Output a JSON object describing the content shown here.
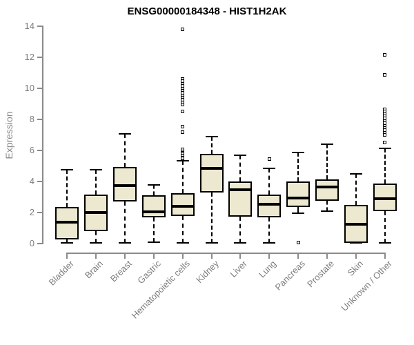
{
  "chart_data": {
    "type": "boxplot",
    "title": "ENSG00000184348 - HIST1H2AK",
    "xlabel": "",
    "ylabel": "Expression",
    "ylim": [
      0,
      14
    ],
    "y_ticks": [
      0,
      2,
      4,
      6,
      8,
      10,
      12,
      14
    ],
    "grid": false,
    "legend": "none",
    "categories": [
      "Bladder",
      "Brain",
      "Breast",
      "Gastric",
      "Hematopoietic cells",
      "Kidney",
      "Liver",
      "Lung",
      "Pancreas",
      "Prostate",
      "Skin",
      "Unknown / Other"
    ],
    "series": [
      {
        "name": "Bladder",
        "low": 0.05,
        "q1": 0.25,
        "median": 1.4,
        "q3": 2.35,
        "high": 4.75,
        "outliers": []
      },
      {
        "name": "Brain",
        "low": 0.05,
        "q1": 0.8,
        "median": 2.0,
        "q3": 3.15,
        "high": 4.75,
        "outliers": []
      },
      {
        "name": "Breast",
        "low": 0.05,
        "q1": 2.7,
        "median": 3.75,
        "q3": 4.95,
        "high": 7.05,
        "outliers": []
      },
      {
        "name": "Gastric",
        "low": 0.1,
        "q1": 1.7,
        "median": 2.05,
        "q3": 3.1,
        "high": 3.8,
        "outliers": []
      },
      {
        "name": "Hematopoietic cells",
        "low": 0.05,
        "q1": 1.8,
        "median": 2.4,
        "q3": 3.25,
        "high": 5.35,
        "outliers": [
          13.8,
          10.6,
          10.45,
          10.3,
          10.15,
          10.0,
          9.85,
          9.7,
          9.55,
          9.4,
          9.25,
          9.1,
          8.95,
          8.5,
          7.55,
          7.2,
          6.05,
          5.95,
          5.85,
          5.75,
          5.65,
          5.55,
          5.5
        ]
      },
      {
        "name": "Kidney",
        "low": 0.05,
        "q1": 3.3,
        "median": 4.85,
        "q3": 5.8,
        "high": 6.9,
        "outliers": []
      },
      {
        "name": "Liver",
        "low": 0.05,
        "q1": 1.75,
        "median": 3.45,
        "q3": 4.0,
        "high": 5.7,
        "outliers": []
      },
      {
        "name": "Lung",
        "low": 0.05,
        "q1": 1.7,
        "median": 2.55,
        "q3": 3.15,
        "high": 4.85,
        "outliers": [
          5.45
        ]
      },
      {
        "name": "Pancreas",
        "low": 1.95,
        "q1": 2.35,
        "median": 2.95,
        "q3": 4.0,
        "high": 5.85,
        "outliers": [
          0.05
        ]
      },
      {
        "name": "Prostate",
        "low": 2.1,
        "q1": 2.75,
        "median": 3.65,
        "q3": 4.15,
        "high": 6.4,
        "outliers": []
      },
      {
        "name": "Skin",
        "low": 0.05,
        "q1": 0.05,
        "median": 1.25,
        "q3": 2.5,
        "high": 4.5,
        "outliers": []
      },
      {
        "name": "Unknown / Other",
        "low": 0.05,
        "q1": 2.1,
        "median": 2.9,
        "q3": 3.85,
        "high": 6.15,
        "outliers": [
          12.15,
          10.85,
          8.65,
          8.5,
          8.35,
          8.2,
          8.05,
          7.9,
          7.75,
          7.6,
          7.45,
          7.3,
          7.15,
          7.0,
          6.5
        ]
      }
    ],
    "colors": {
      "box_fill": "#EDE8D0",
      "box_border": "#000000",
      "median": "#000000",
      "whisker": "#000000",
      "axis": "#8A8A8A",
      "tick_label": "#7E7E7E",
      "title": "#000000",
      "background": "#FFFFFF"
    }
  }
}
